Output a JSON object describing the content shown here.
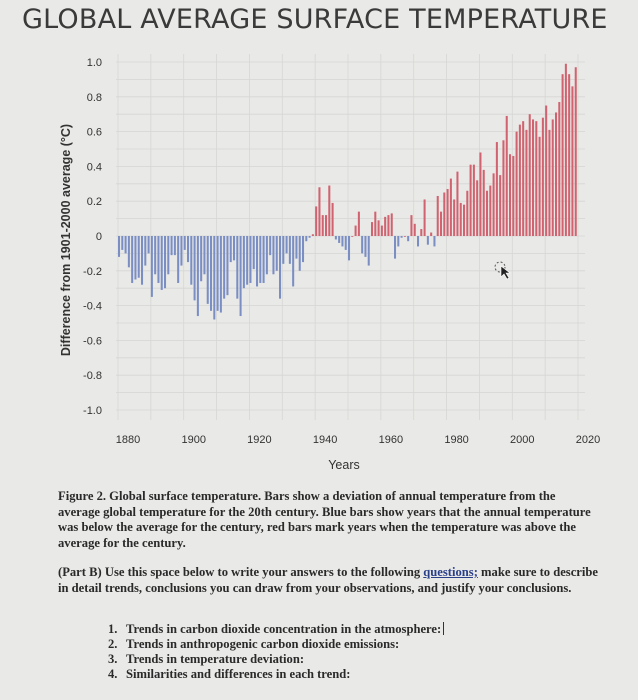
{
  "chart_data": {
    "type": "bar",
    "title": "GLOBAL AVERAGE SURFACE TEMPERATURE",
    "xlabel": "Years",
    "ylabel": "Difference from 1901-2000 average (°C)",
    "xlim": [
      1880,
      2020
    ],
    "ylim": [
      -1.0,
      1.0
    ],
    "x_ticks": [
      "1880",
      "1900",
      "1920",
      "1940",
      "1960",
      "1980",
      "2000",
      "2020"
    ],
    "y_ticks": [
      "1.0",
      "0.8",
      "0.6",
      "0.4",
      "0.2",
      "0",
      "-0.2",
      "-0.4",
      "-0.6",
      "-0.8",
      "-1.0"
    ],
    "y_tick_values": [
      1.0,
      0.8,
      0.6,
      0.4,
      0.2,
      0,
      -0.2,
      -0.4,
      -0.6,
      -0.8,
      -1.0
    ],
    "grid": true,
    "colors": {
      "positive": "#d0636f",
      "negative": "#7a8ec4"
    },
    "start_year": 1880,
    "values": [
      -0.12,
      -0.08,
      -0.1,
      -0.18,
      -0.27,
      -0.25,
      -0.24,
      -0.28,
      -0.17,
      -0.1,
      -0.35,
      -0.22,
      -0.27,
      -0.31,
      -0.3,
      -0.22,
      -0.11,
      -0.11,
      -0.27,
      -0.17,
      -0.08,
      -0.15,
      -0.28,
      -0.37,
      -0.46,
      -0.26,
      -0.22,
      -0.39,
      -0.43,
      -0.48,
      -0.43,
      -0.44,
      -0.36,
      -0.34,
      -0.15,
      -0.14,
      -0.36,
      -0.46,
      -0.3,
      -0.28,
      -0.27,
      -0.19,
      -0.29,
      -0.27,
      -0.27,
      -0.22,
      -0.11,
      -0.22,
      -0.2,
      -0.36,
      -0.16,
      -0.1,
      -0.16,
      -0.29,
      -0.13,
      -0.2,
      -0.15,
      -0.03,
      -0.01,
      0.01,
      0.17,
      0.28,
      0.12,
      0.12,
      0.29,
      0.19,
      -0.02,
      -0.04,
      -0.06,
      -0.08,
      -0.14,
      0.0,
      0.06,
      0.14,
      -0.1,
      -0.12,
      -0.17,
      0.08,
      0.14,
      0.09,
      0.06,
      0.11,
      0.12,
      0.13,
      -0.13,
      -0.06,
      -0.01,
      0.0,
      -0.03,
      0.12,
      0.07,
      -0.06,
      0.04,
      0.21,
      -0.05,
      0.02,
      -0.06,
      0.23,
      0.14,
      0.25,
      0.27,
      0.33,
      0.21,
      0.37,
      0.19,
      0.18,
      0.26,
      0.41,
      0.41,
      0.32,
      0.48,
      0.38,
      0.26,
      0.29,
      0.36,
      0.54,
      0.35,
      0.55,
      0.69,
      0.47,
      0.46,
      0.6,
      0.64,
      0.66,
      0.61,
      0.7,
      0.67,
      0.66,
      0.57,
      0.68,
      0.75,
      0.61,
      0.67,
      0.71,
      0.77,
      0.93,
      0.99,
      0.93,
      0.86,
      0.97
    ]
  },
  "caption": {
    "figure": "Figure 2. Global surface temperature. Bars show a deviation of annual temperature from the average global temperature for the 20th century. Blue bars show years that the annual temperature was below the average for the century, red bars mark years when the temperature was above the average for the century.",
    "part_b_before": "(Part B) Use this space below to write your answers to the following ",
    "part_b_link": "questions;",
    "part_b_after": " make sure to describe in detail trends, conclusions you can draw from your observations, and justify your conclusions."
  },
  "questions": [
    {
      "num": "1.",
      "text": "Trends in carbon dioxide concentration in the atmosphere:"
    },
    {
      "num": "2.",
      "text": "Trends in anthropogenic carbon dioxide emissions:"
    },
    {
      "num": "3.",
      "text": "Trends in temperature deviation:"
    },
    {
      "num": "4.",
      "text": "Similarities and differences in each trend:"
    }
  ]
}
